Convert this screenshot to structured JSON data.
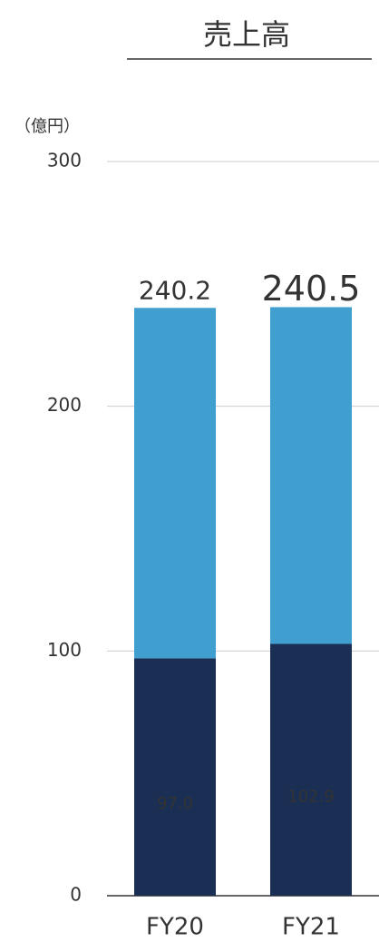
{
  "chart_data": {
    "type": "stacked_bar",
    "title": "売上高",
    "y_axis_label": "（億円）",
    "categories": [
      "FY20",
      "FY21"
    ],
    "series": [
      {
        "color": "#1b2f55",
        "values": [
          97.0,
          102.9
        ],
        "value_labels": [
          "97.0",
          "102.9"
        ]
      },
      {
        "color": "#419fd0",
        "values": [
          143.2,
          137.6
        ]
      }
    ],
    "totals": [
      240.2,
      240.5
    ],
    "total_labels": [
      "240.2",
      "240.5"
    ],
    "total_colors": [
      "#333333",
      "#ff0000"
    ],
    "ylim": [
      0,
      300
    ],
    "yticks": [
      0,
      100,
      200,
      300
    ],
    "grid": true
  }
}
